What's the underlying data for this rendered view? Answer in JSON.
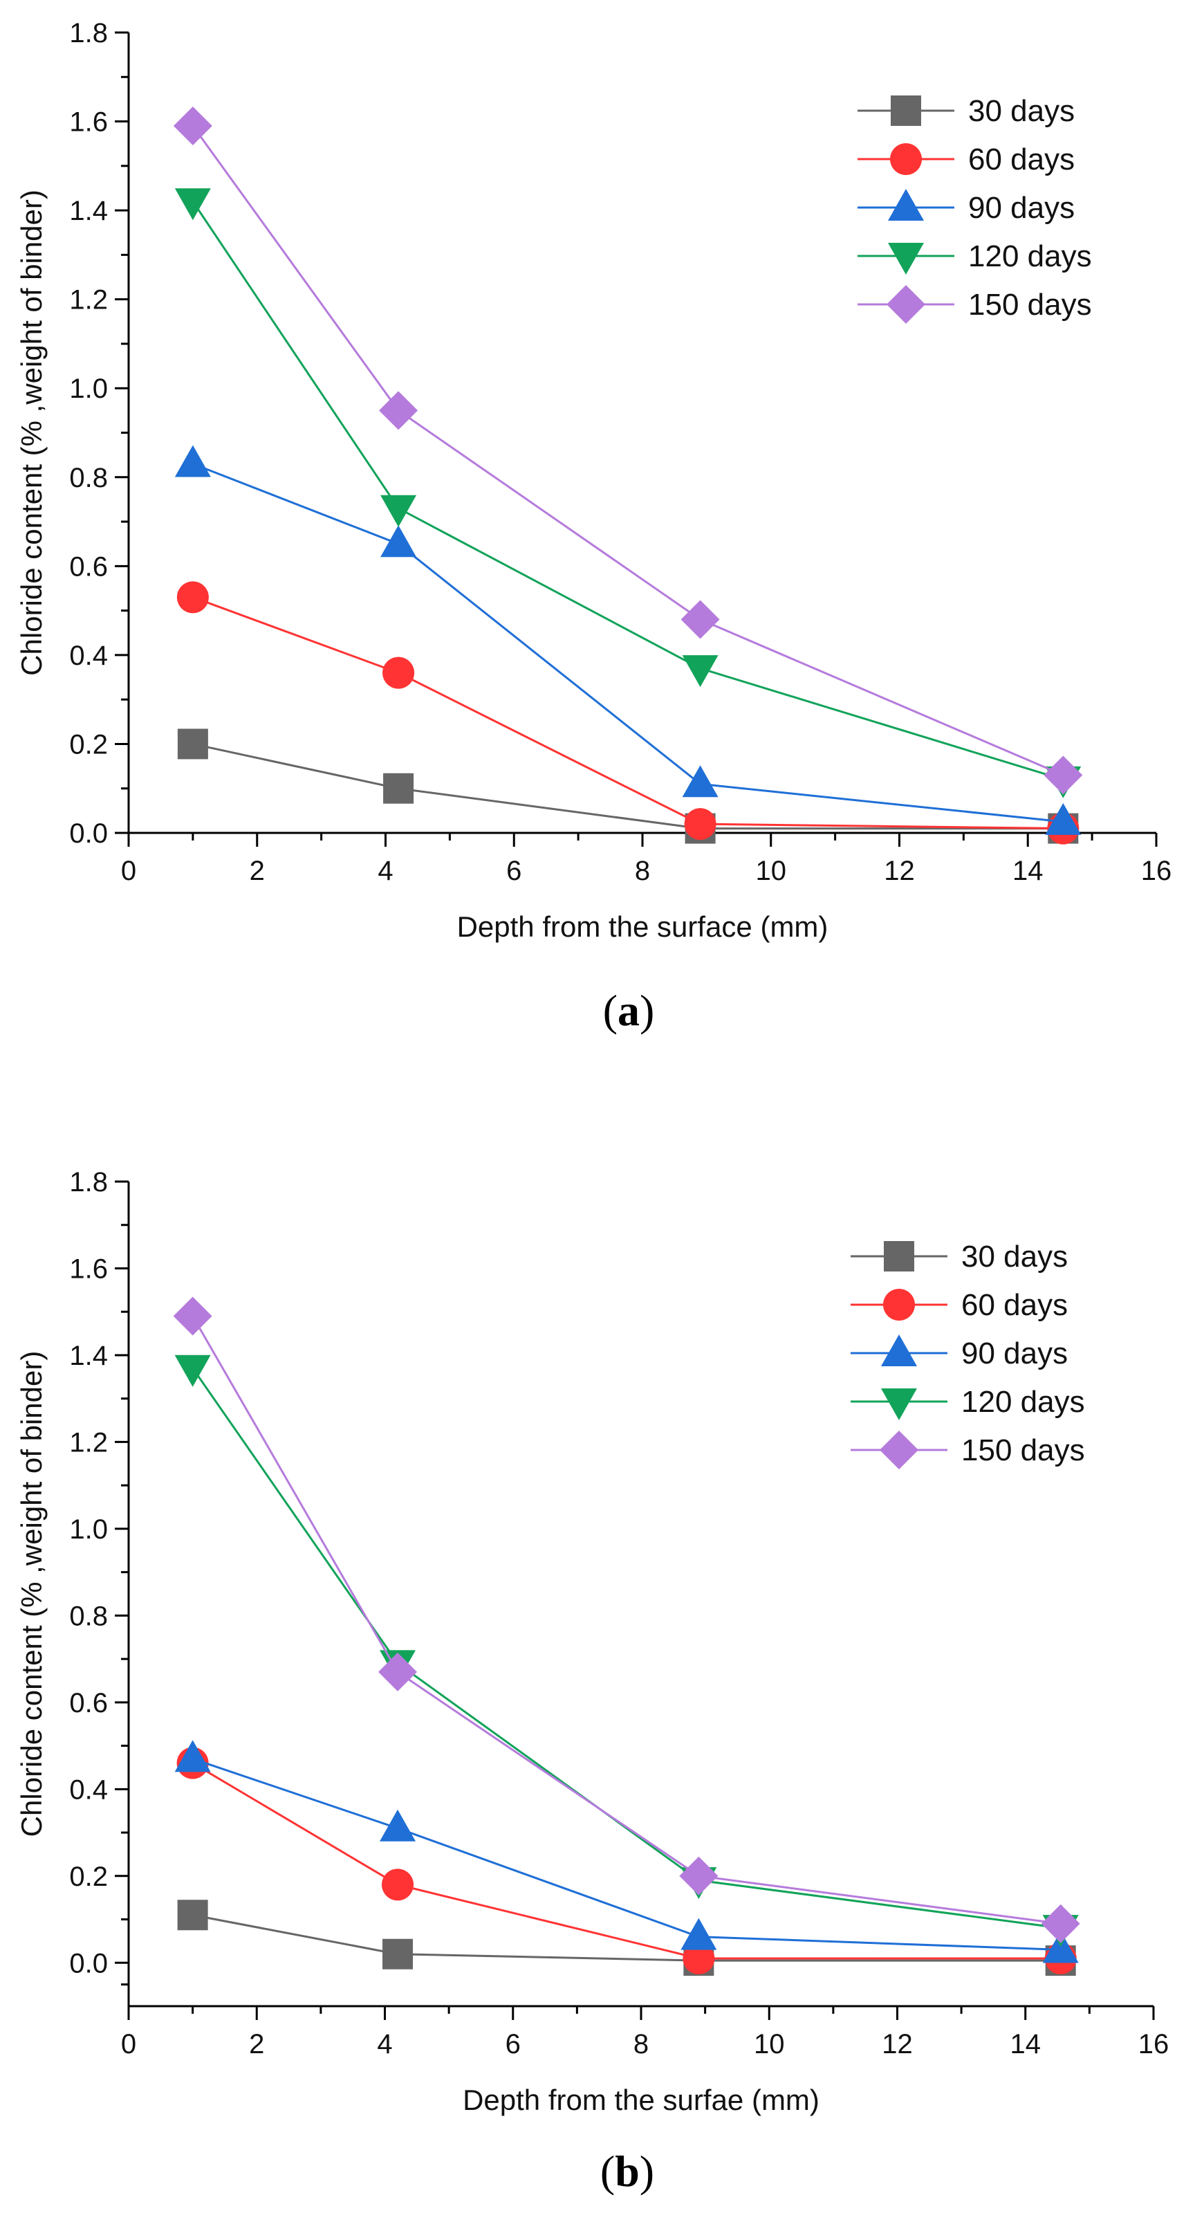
{
  "chart_data": [
    {
      "type": "line",
      "panel_label": "a",
      "xlabel": "Depth from the surface (mm)",
      "ylabel": "Chloride content (% ,weight of binder)",
      "xlim": [
        0,
        16
      ],
      "ylim": [
        0,
        1.8
      ],
      "xticks": [
        0,
        2,
        4,
        6,
        8,
        10,
        12,
        14,
        16
      ],
      "yticks": [
        0.0,
        0.2,
        0.4,
        0.6,
        0.8,
        1.0,
        1.2,
        1.4,
        1.6,
        1.8
      ],
      "ytick_labels": [
        "0.0",
        "0.2",
        "0.4",
        "0.6",
        "0.8",
        "1.0",
        "1.2",
        "1.4",
        "1.6",
        "1.8"
      ],
      "legend_position": "top-right",
      "x": [
        1.0,
        4.2,
        8.9,
        14.55
      ],
      "series": [
        {
          "name": "30 days",
          "color": "#666666",
          "marker": "square",
          "values": [
            0.2,
            0.1,
            0.01,
            0.01
          ]
        },
        {
          "name": "60 days",
          "color": "#ff3333",
          "marker": "circle",
          "values": [
            0.53,
            0.36,
            0.02,
            0.01
          ]
        },
        {
          "name": "90 days",
          "color": "#1f6fd6",
          "marker": "triangle-up",
          "values": [
            0.83,
            0.65,
            0.11,
            0.025
          ]
        },
        {
          "name": "120 days",
          "color": "#12a35a",
          "marker": "triangle-down",
          "values": [
            1.42,
            0.73,
            0.37,
            0.12
          ]
        },
        {
          "name": "150 days",
          "color": "#b57bdc",
          "marker": "diamond",
          "values": [
            1.59,
            0.95,
            0.48,
            0.13
          ]
        }
      ]
    },
    {
      "type": "line",
      "panel_label": "b",
      "xlabel": "Depth from the surfae (mm)",
      "ylabel": "Chloride content (% ,weight of binder)",
      "xlim": [
        0,
        16
      ],
      "ylim": [
        -0.1,
        1.8
      ],
      "xticks": [
        0,
        2,
        4,
        6,
        8,
        10,
        12,
        14,
        16
      ],
      "yticks": [
        0.0,
        0.2,
        0.4,
        0.6,
        0.8,
        1.0,
        1.2,
        1.4,
        1.6,
        1.8
      ],
      "ytick_labels": [
        "0.0",
        "0.2",
        "0.4",
        "0.6",
        "0.8",
        "1.0",
        "1.2",
        "1.4",
        "1.6",
        "1.8"
      ],
      "legend_position": "top-right",
      "x": [
        1.0,
        4.2,
        8.9,
        14.55
      ],
      "series": [
        {
          "name": "30 days",
          "color": "#666666",
          "marker": "square",
          "values": [
            0.11,
            0.02,
            0.005,
            0.005
          ]
        },
        {
          "name": "60 days",
          "color": "#ff3333",
          "marker": "circle",
          "values": [
            0.46,
            0.18,
            0.01,
            0.01
          ]
        },
        {
          "name": "90 days",
          "color": "#1f6fd6",
          "marker": "triangle-up",
          "values": [
            0.47,
            0.31,
            0.06,
            0.03
          ]
        },
        {
          "name": "120 days",
          "color": "#12a35a",
          "marker": "triangle-down",
          "values": [
            1.37,
            0.69,
            0.19,
            0.08
          ]
        },
        {
          "name": "150 days",
          "color": "#b57bdc",
          "marker": "diamond",
          "values": [
            1.49,
            0.67,
            0.2,
            0.09
          ]
        }
      ]
    }
  ]
}
